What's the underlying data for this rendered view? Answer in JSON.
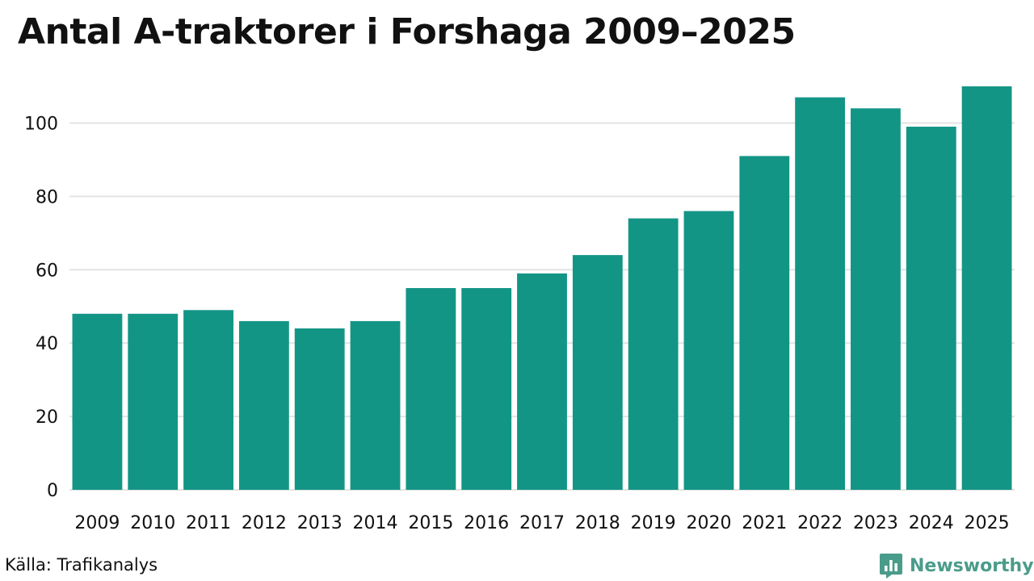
{
  "title": "Antal A-traktorer i Forshaga 2009–2025",
  "source": "Källa: Trafikanalys",
  "brand": {
    "name": "Newsworthy",
    "color": "#4a9c8a"
  },
  "colors": {
    "bar": "#139586",
    "grid": "#e3e3e3",
    "text": "#111111"
  },
  "chart_data": {
    "type": "bar",
    "title": "Antal A-traktorer i Forshaga 2009–2025",
    "xlabel": "",
    "ylabel": "",
    "categories": [
      "2009",
      "2010",
      "2011",
      "2012",
      "2013",
      "2014",
      "2015",
      "2016",
      "2017",
      "2018",
      "2019",
      "2020",
      "2021",
      "2022",
      "2023",
      "2024",
      "2025"
    ],
    "values": [
      48,
      48,
      49,
      46,
      44,
      46,
      55,
      55,
      59,
      64,
      74,
      76,
      91,
      107,
      104,
      99,
      110
    ],
    "ylim": [
      0,
      110
    ],
    "yticks": [
      0,
      20,
      40,
      60,
      80,
      100
    ],
    "grid": true,
    "legend": "none"
  }
}
